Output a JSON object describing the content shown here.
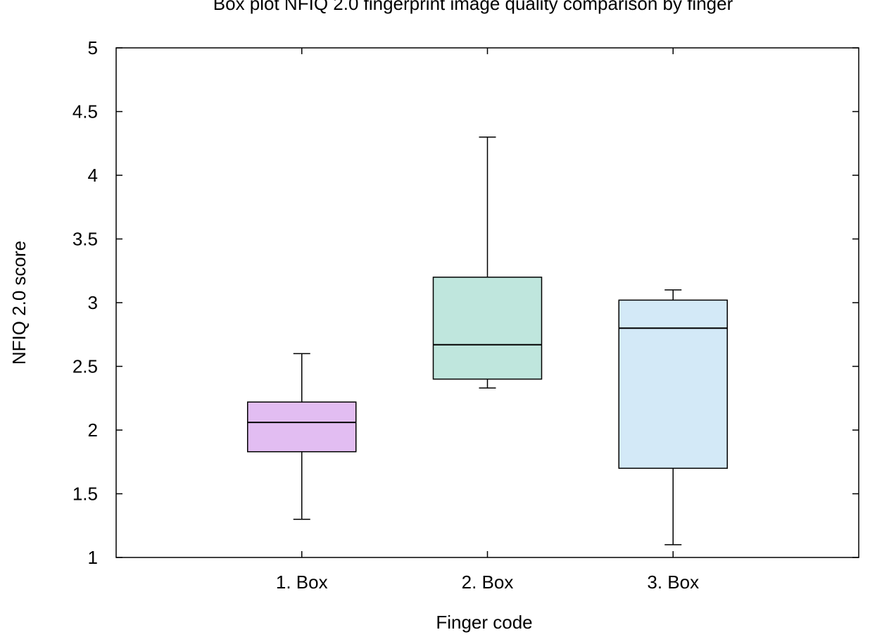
{
  "chart_data": {
    "type": "box",
    "title": "Box plot NFIQ 2.0 fingerprint image quality comparison by finger",
    "xlabel": "Finger code",
    "ylabel": "NFIQ 2.0 score",
    "ylim": [
      1,
      5
    ],
    "yticks": [
      1,
      1.5,
      2,
      2.5,
      3,
      3.5,
      4,
      4.5,
      5
    ],
    "ytick_labels": [
      "1",
      "1.5",
      "2",
      "2.5",
      "3",
      "3.5",
      "4",
      "4.5",
      "5"
    ],
    "grid": false,
    "categories": [
      "1. Box",
      "2. Box",
      "3. Box"
    ],
    "boxes": [
      {
        "label": "1. Box",
        "whisker_low": 1.3,
        "q1": 1.83,
        "median": 2.06,
        "q3": 2.22,
        "whisker_high": 2.6,
        "color": "#e2bdf2"
      },
      {
        "label": "2. Box",
        "whisker_low": 2.33,
        "q1": 2.4,
        "median": 2.67,
        "q3": 3.2,
        "whisker_high": 4.3,
        "color": "#bfe6dd"
      },
      {
        "label": "3. Box",
        "whisker_low": 1.1,
        "q1": 1.7,
        "median": 2.8,
        "q3": 3.02,
        "whisker_high": 3.1,
        "color": "#d3e9f7"
      }
    ]
  }
}
